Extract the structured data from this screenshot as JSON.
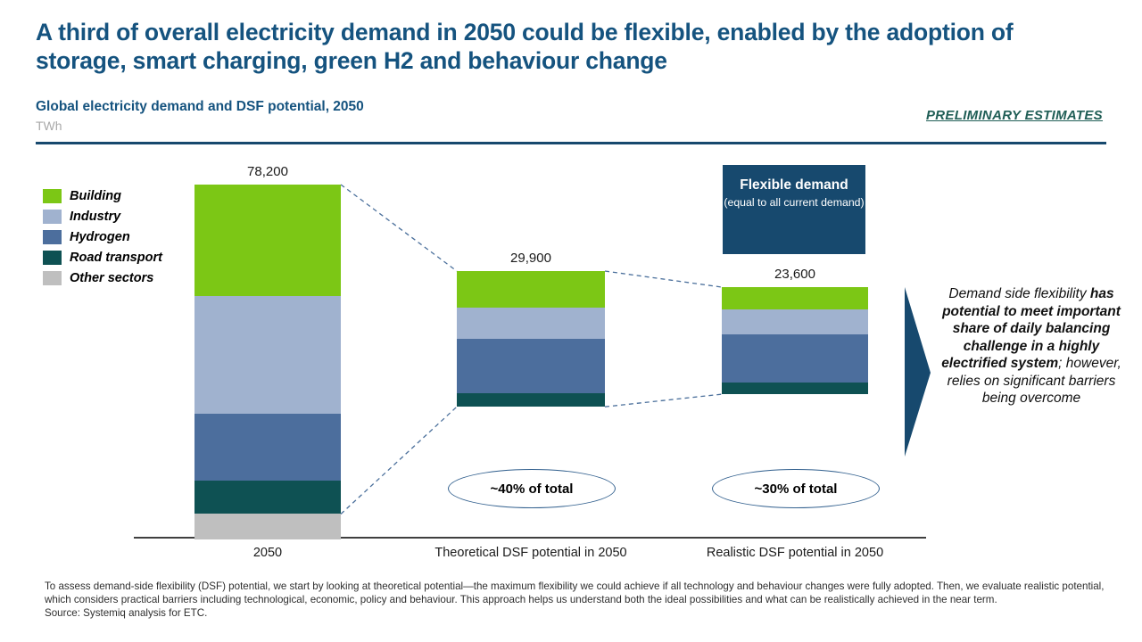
{
  "header": {
    "title": "A third of overall electricity demand in 2050 could be flexible, enabled by the adoption of storage, smart charging, green H2 and behaviour change",
    "stamp": "PRELIMINARY ESTIMATES"
  },
  "chart": {
    "title": "Global electricity demand and DSF potential, 2050",
    "unit": "TWh"
  },
  "chart_data": {
    "type": "bar",
    "stacked": true,
    "unit": "TWh",
    "title": "Global electricity demand and DSF potential, 2050",
    "categories": [
      "2050",
      "Theoretical DSF potential in 2050",
      "Realistic DSF potential in 2050"
    ],
    "totals": [
      78200,
      29900,
      23600
    ],
    "total_labels": [
      "78,200",
      "29,900",
      "23,600"
    ],
    "series": [
      {
        "name": "Building",
        "color": "#7CC715",
        "values": [
          24500,
          8000,
          4900
        ]
      },
      {
        "name": "Industry",
        "color": "#A0B2CF",
        "values": [
          25900,
          7000,
          5500
        ]
      },
      {
        "name": "Hydrogen",
        "color": "#4C6E9D",
        "values": [
          14900,
          12000,
          10600
        ]
      },
      {
        "name": "Road transport",
        "color": "#0E5153",
        "values": [
          7300,
          2900,
          2600
        ]
      },
      {
        "name": "Other sectors",
        "color": "#BFBFBF",
        "values": [
          5600,
          0,
          0
        ]
      }
    ],
    "annotations": [
      "~40% of total",
      "~30% of total"
    ],
    "legend_position": "left",
    "grid": false
  },
  "flexible_box": {
    "title": "Flexible demand",
    "subtitle": "(equal to all current demand)"
  },
  "takeaway": {
    "part1": "Demand side flexibility ",
    "part2": "has potential to meet important share of daily balancing challenge in a highly electrified system",
    "part3": "; however, relies on significant barriers being overcome"
  },
  "footer": {
    "note": "To assess demand-side flexibility (DSF) potential, we start by looking at theoretical potential—the maximum flexibility we could achieve if all technology and behaviour changes were fully adopted. Then, we evaluate realistic potential, which considers practical barriers including technological, economic, policy and behaviour. This approach helps us understand both the ideal possibilities and what can be realistically achieved in the near term.",
    "source": "Source: Systemiq analysis for ETC."
  },
  "colors": {
    "accent_navy": "#17496E",
    "title_blue": "#15537F",
    "stamp_teal": "#205E56",
    "connector_blue": "#4A6F9B",
    "oval_border": "#33618F"
  }
}
